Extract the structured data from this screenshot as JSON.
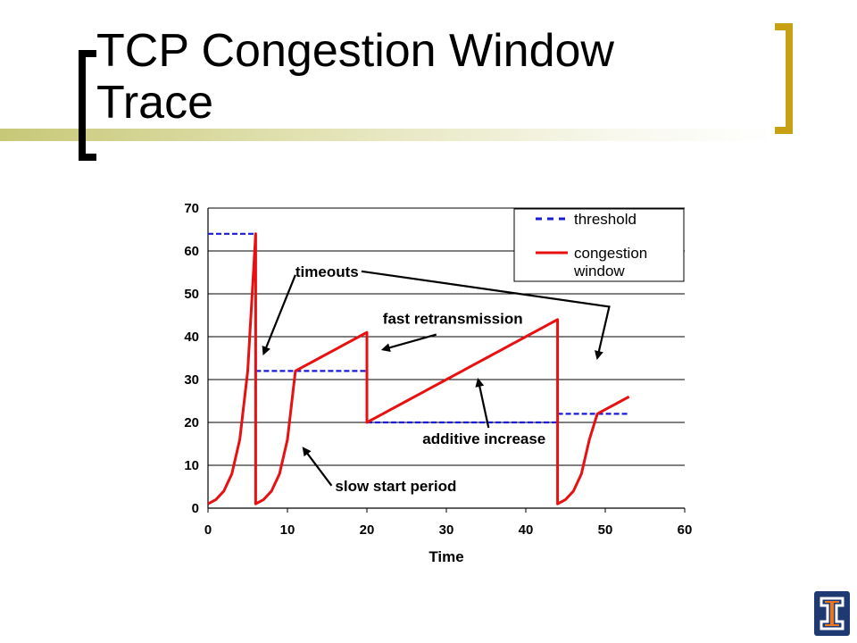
{
  "slide": {
    "title": "TCP Congestion Window Trace"
  },
  "colors": {
    "threshold": "#1a1adc",
    "congestion_window": "#e81010",
    "title_bar": "#c8c878",
    "accent_bracket": "#c8a014",
    "logo_blue": "#1f3a73",
    "logo_orange": "#e87722"
  },
  "chart_data": {
    "type": "line",
    "xlabel": "Time",
    "ylabel": "",
    "xlim": [
      0,
      60
    ],
    "ylim": [
      0,
      70
    ],
    "xticks": [
      0,
      10,
      20,
      30,
      40,
      50,
      60
    ],
    "yticks": [
      0,
      10,
      20,
      30,
      40,
      50,
      60,
      70
    ],
    "grid": "horizontal",
    "legend_position": "top-right",
    "series": [
      {
        "name": "threshold",
        "style": "dashed",
        "segments": [
          [
            [
              0,
              64
            ],
            [
              6,
              64
            ]
          ],
          [
            [
              6,
              32
            ],
            [
              20,
              32
            ]
          ],
          [
            [
              20,
              20
            ],
            [
              44,
              20
            ]
          ],
          [
            [
              44,
              22
            ],
            [
              53,
              22
            ]
          ]
        ]
      },
      {
        "name": "congestion window",
        "style": "solid",
        "points": [
          [
            0,
            1
          ],
          [
            1,
            2
          ],
          [
            2,
            4
          ],
          [
            3,
            8
          ],
          [
            4,
            16
          ],
          [
            5,
            32
          ],
          [
            6,
            64
          ],
          [
            6,
            1
          ],
          [
            7,
            2
          ],
          [
            8,
            4
          ],
          [
            9,
            8
          ],
          [
            10,
            16
          ],
          [
            11,
            32
          ],
          [
            12,
            33
          ],
          [
            13,
            34
          ],
          [
            14,
            35
          ],
          [
            15,
            36
          ],
          [
            16,
            37
          ],
          [
            17,
            38
          ],
          [
            18,
            39
          ],
          [
            19,
            40
          ],
          [
            20,
            41
          ],
          [
            20,
            20
          ],
          [
            21,
            21
          ],
          [
            22,
            22
          ],
          [
            23,
            23
          ],
          [
            24,
            24
          ],
          [
            25,
            25
          ],
          [
            26,
            26
          ],
          [
            27,
            27
          ],
          [
            28,
            28
          ],
          [
            29,
            29
          ],
          [
            30,
            30
          ],
          [
            31,
            31
          ],
          [
            32,
            32
          ],
          [
            33,
            33
          ],
          [
            34,
            34
          ],
          [
            35,
            35
          ],
          [
            36,
            36
          ],
          [
            37,
            37
          ],
          [
            38,
            38
          ],
          [
            39,
            39
          ],
          [
            40,
            40
          ],
          [
            41,
            41
          ],
          [
            42,
            42
          ],
          [
            43,
            43
          ],
          [
            44,
            44
          ],
          [
            44,
            1
          ],
          [
            45,
            2
          ],
          [
            46,
            4
          ],
          [
            47,
            8
          ],
          [
            48,
            16
          ],
          [
            49,
            22
          ],
          [
            50,
            23
          ],
          [
            51,
            24
          ],
          [
            52,
            25
          ],
          [
            53,
            26
          ]
        ]
      }
    ],
    "annotations": [
      {
        "text": "timeouts",
        "at": [
          11,
          54
        ],
        "arrows_to": [
          [
            7,
            36
          ],
          [
            49,
            35
          ]
        ]
      },
      {
        "text": "fast retransmission",
        "at": [
          22,
          43
        ],
        "arrows_to": [
          [
            22,
            37
          ]
        ]
      },
      {
        "text": "additive increase",
        "at": [
          27,
          15
        ],
        "arrows_to": [
          [
            34,
            30
          ]
        ]
      },
      {
        "text": "slow start period",
        "at": [
          16,
          4
        ],
        "arrows_to": [
          [
            12,
            14
          ]
        ]
      }
    ]
  }
}
